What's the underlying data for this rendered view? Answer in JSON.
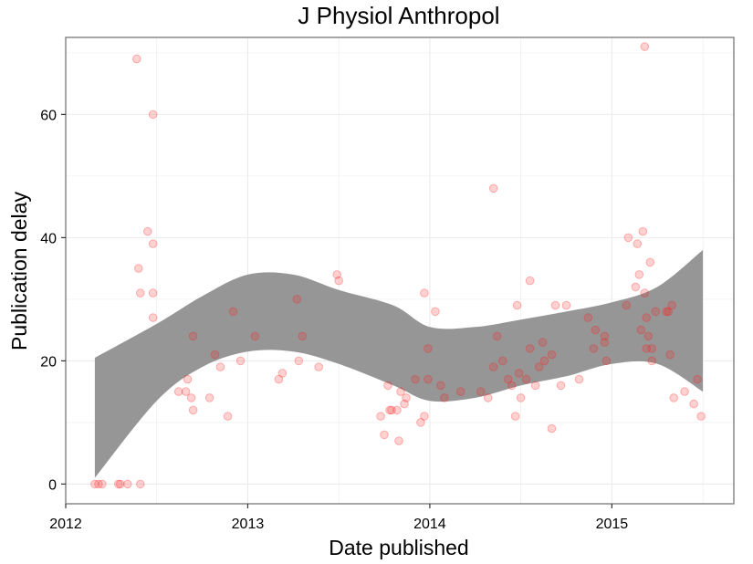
{
  "chart_data": {
    "type": "scatter",
    "title": "J Physiol Anthropol",
    "xlabel": "Date published",
    "ylabel": "Publication delay",
    "xlim": [
      2012.0,
      2015.67
    ],
    "ylim": [
      -3.2,
      72.5
    ],
    "xticks": [
      2012,
      2013,
      2014,
      2015
    ],
    "yticks": [
      0,
      20,
      40,
      60
    ],
    "grid": true,
    "legend": "none",
    "colors": {
      "points": "#ff1a1a",
      "ribbon": "#969696",
      "grid": "#ebebeb",
      "border": "#808080"
    },
    "points": [
      [
        2012.16,
        0
      ],
      [
        2012.18,
        0
      ],
      [
        2012.2,
        0
      ],
      [
        2012.29,
        0
      ],
      [
        2012.3,
        0
      ],
      [
        2012.34,
        0
      ],
      [
        2012.41,
        0
      ],
      [
        2012.39,
        69
      ],
      [
        2012.48,
        60
      ],
      [
        2012.45,
        41
      ],
      [
        2012.48,
        39
      ],
      [
        2012.4,
        35
      ],
      [
        2012.41,
        31
      ],
      [
        2012.48,
        31
      ],
      [
        2012.48,
        27
      ],
      [
        2012.62,
        15
      ],
      [
        2012.66,
        15
      ],
      [
        2012.67,
        17
      ],
      [
        2012.69,
        14
      ],
      [
        2012.7,
        24
      ],
      [
        2012.7,
        12
      ],
      [
        2012.79,
        14
      ],
      [
        2012.82,
        21
      ],
      [
        2012.85,
        19
      ],
      [
        2012.89,
        11
      ],
      [
        2012.92,
        28
      ],
      [
        2012.96,
        20
      ],
      [
        2013.04,
        24
      ],
      [
        2013.17,
        17
      ],
      [
        2013.19,
        18
      ],
      [
        2013.27,
        30
      ],
      [
        2013.28,
        20
      ],
      [
        2013.3,
        24
      ],
      [
        2013.39,
        19
      ],
      [
        2013.49,
        34
      ],
      [
        2013.5,
        33
      ],
      [
        2013.73,
        11
      ],
      [
        2013.75,
        8
      ],
      [
        2013.77,
        16
      ],
      [
        2013.78,
        12
      ],
      [
        2013.79,
        12
      ],
      [
        2013.82,
        12
      ],
      [
        2013.83,
        7
      ],
      [
        2013.84,
        15
      ],
      [
        2013.86,
        13
      ],
      [
        2013.87,
        14
      ],
      [
        2013.92,
        17
      ],
      [
        2013.95,
        10
      ],
      [
        2013.97,
        11
      ],
      [
        2013.97,
        31
      ],
      [
        2013.99,
        17
      ],
      [
        2013.99,
        22
      ],
      [
        2014.03,
        28
      ],
      [
        2014.06,
        16
      ],
      [
        2014.08,
        14
      ],
      [
        2014.17,
        15
      ],
      [
        2014.28,
        15
      ],
      [
        2014.32,
        14
      ],
      [
        2014.35,
        48
      ],
      [
        2014.35,
        19
      ],
      [
        2014.37,
        24
      ],
      [
        2014.4,
        20
      ],
      [
        2014.43,
        17
      ],
      [
        2014.45,
        16
      ],
      [
        2014.47,
        11
      ],
      [
        2014.48,
        29
      ],
      [
        2014.49,
        18
      ],
      [
        2014.5,
        14
      ],
      [
        2014.53,
        17
      ],
      [
        2014.55,
        33
      ],
      [
        2014.55,
        22
      ],
      [
        2014.58,
        16
      ],
      [
        2014.6,
        19
      ],
      [
        2014.62,
        23
      ],
      [
        2014.63,
        20
      ],
      [
        2014.67,
        9
      ],
      [
        2014.67,
        21
      ],
      [
        2014.69,
        29
      ],
      [
        2014.72,
        16
      ],
      [
        2014.75,
        29
      ],
      [
        2014.82,
        17
      ],
      [
        2014.87,
        27
      ],
      [
        2014.9,
        22
      ],
      [
        2014.91,
        25
      ],
      [
        2014.96,
        24
      ],
      [
        2014.96,
        23
      ],
      [
        2014.97,
        20
      ],
      [
        2015.08,
        29
      ],
      [
        2015.09,
        40
      ],
      [
        2015.13,
        32
      ],
      [
        2015.14,
        39
      ],
      [
        2015.15,
        34
      ],
      [
        2015.16,
        25
      ],
      [
        2015.17,
        41
      ],
      [
        2015.18,
        31
      ],
      [
        2015.18,
        71
      ],
      [
        2015.19,
        27
      ],
      [
        2015.19,
        22
      ],
      [
        2015.2,
        24
      ],
      [
        2015.21,
        36
      ],
      [
        2015.22,
        22
      ],
      [
        2015.22,
        20
      ],
      [
        2015.24,
        28
      ],
      [
        2015.3,
        28
      ],
      [
        2015.31,
        28
      ],
      [
        2015.32,
        21
      ],
      [
        2015.33,
        29
      ],
      [
        2015.34,
        14
      ],
      [
        2015.4,
        15
      ],
      [
        2015.45,
        13
      ],
      [
        2015.47,
        17
      ],
      [
        2015.49,
        11
      ]
    ],
    "smooth_band": {
      "x": [
        2012.16,
        2012.5,
        2012.75,
        2013.0,
        2013.25,
        2013.5,
        2013.8,
        2014.0,
        2014.25,
        2014.5,
        2014.75,
        2015.0,
        2015.25,
        2015.5
      ],
      "upper": [
        20.5,
        26.0,
        30.5,
        34.0,
        34.0,
        31.5,
        29.0,
        25.5,
        25.5,
        26.7,
        28.0,
        29.5,
        32.0,
        38.0
      ],
      "lower": [
        1.0,
        13.5,
        19.0,
        21.5,
        21.5,
        19.5,
        16.0,
        13.5,
        14.0,
        16.0,
        17.5,
        19.5,
        19.5,
        15.0
      ]
    }
  }
}
